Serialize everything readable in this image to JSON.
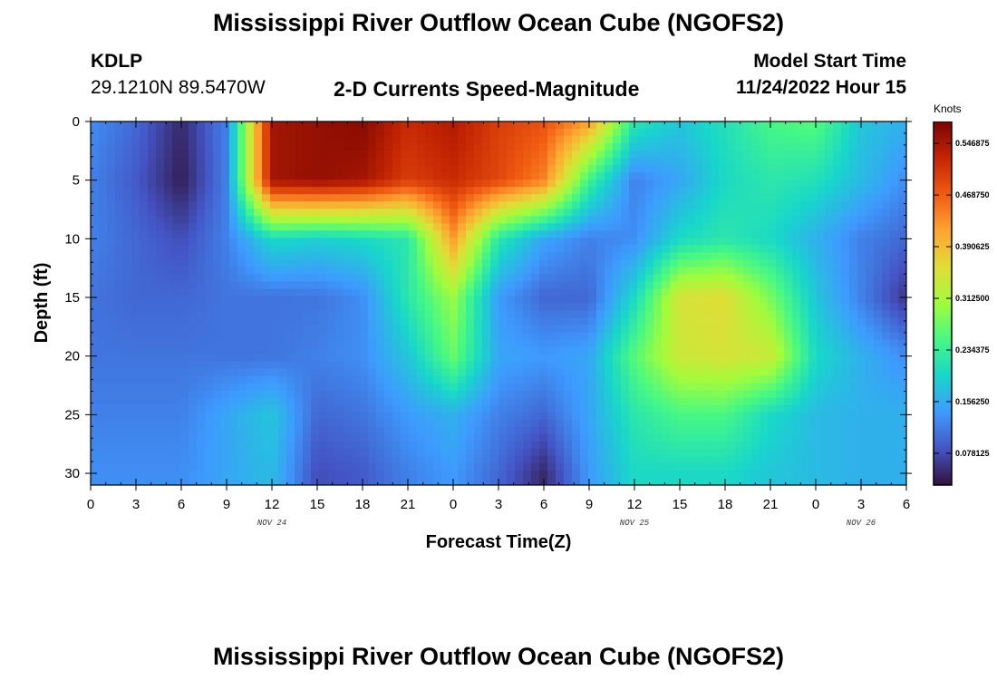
{
  "header": {
    "title": "Mississippi River Outflow Ocean Cube (NGOFS2)",
    "station": "KDLP",
    "coordinates": "29.1210N  89.5470W",
    "subtitle": "2-D Currents Speed-Magnitude",
    "model_start_label": "Model Start Time",
    "model_start_value": "11/24/2022 Hour 15"
  },
  "footer": {
    "title": "Mississippi River Outflow Ocean Cube (NGOFS2)"
  },
  "colorbar": {
    "title": "Knots",
    "labels": [
      "0.546875",
      "0.468750",
      "0.390625",
      "0.312500",
      "0.234375",
      "0.156250",
      "0.078125"
    ],
    "vmin": 0.03,
    "vmax": 0.58,
    "palette": [
      "#30123b",
      "#4454c4",
      "#3e9bfe",
      "#18d6cb",
      "#46f884",
      "#a2fc3c",
      "#e1dd37",
      "#fea431",
      "#f05b12",
      "#c42503",
      "#7a0403"
    ]
  },
  "chart_data": {
    "type": "heatmap",
    "title": "2-D Currents Speed-Magnitude",
    "xlabel": "Forecast Time(Z)",
    "ylabel": "Depth (ft)",
    "zlabel": "Knots",
    "xlim": [
      0,
      54
    ],
    "ylim": [
      31,
      0
    ],
    "x_ticks": [
      0,
      3,
      6,
      9,
      12,
      15,
      18,
      21,
      24,
      27,
      30,
      33,
      36,
      39,
      42,
      45,
      48,
      51,
      54
    ],
    "x_tick_labels": [
      "0",
      "3",
      "6",
      "9",
      "12",
      "15",
      "18",
      "21",
      "0",
      "3",
      "6",
      "9",
      "12",
      "15",
      "18",
      "21",
      "0",
      "3",
      "6"
    ],
    "y_ticks": [
      0,
      5,
      10,
      15,
      20,
      25,
      30
    ],
    "y_tick_labels": [
      "0",
      "5",
      "10",
      "15",
      "20",
      "25",
      "30"
    ],
    "date_labels": [
      {
        "x": 12,
        "text": "NOV 24"
      },
      {
        "x": 36,
        "text": "NOV 25"
      },
      {
        "x": 51,
        "text": "NOV 26"
      }
    ],
    "x": [
      0,
      3,
      6,
      9,
      12,
      15,
      18,
      21,
      24,
      27,
      30,
      33,
      36,
      39,
      42,
      45,
      48,
      51,
      54
    ],
    "depths": [
      0,
      5,
      10,
      15,
      20,
      25,
      30
    ],
    "values": [
      [
        0.13,
        0.1,
        0.05,
        0.12,
        0.55,
        0.56,
        0.57,
        0.52,
        0.54,
        0.5,
        0.48,
        0.42,
        0.22,
        0.18,
        0.21,
        0.25,
        0.26,
        0.18,
        0.16
      ],
      [
        0.12,
        0.09,
        0.04,
        0.12,
        0.55,
        0.56,
        0.55,
        0.5,
        0.52,
        0.49,
        0.44,
        0.24,
        0.12,
        0.15,
        0.2,
        0.22,
        0.21,
        0.17,
        0.13
      ],
      [
        0.12,
        0.1,
        0.08,
        0.12,
        0.2,
        0.19,
        0.2,
        0.22,
        0.42,
        0.22,
        0.15,
        0.12,
        0.13,
        0.2,
        0.22,
        0.2,
        0.16,
        0.12,
        0.1
      ],
      [
        0.11,
        0.1,
        0.1,
        0.11,
        0.11,
        0.11,
        0.13,
        0.22,
        0.3,
        0.14,
        0.1,
        0.1,
        0.2,
        0.35,
        0.36,
        0.28,
        0.18,
        0.12,
        0.06
      ],
      [
        0.11,
        0.11,
        0.11,
        0.11,
        0.11,
        0.12,
        0.13,
        0.18,
        0.27,
        0.15,
        0.14,
        0.15,
        0.26,
        0.34,
        0.35,
        0.34,
        0.2,
        0.16,
        0.13
      ],
      [
        0.12,
        0.12,
        0.12,
        0.15,
        0.18,
        0.1,
        0.11,
        0.14,
        0.16,
        0.12,
        0.1,
        0.15,
        0.22,
        0.25,
        0.25,
        0.2,
        0.17,
        0.16,
        0.16
      ],
      [
        0.13,
        0.13,
        0.13,
        0.15,
        0.17,
        0.08,
        0.09,
        0.12,
        0.14,
        0.1,
        0.05,
        0.14,
        0.2,
        0.2,
        0.2,
        0.18,
        0.17,
        0.16,
        0.16
      ]
    ]
  }
}
